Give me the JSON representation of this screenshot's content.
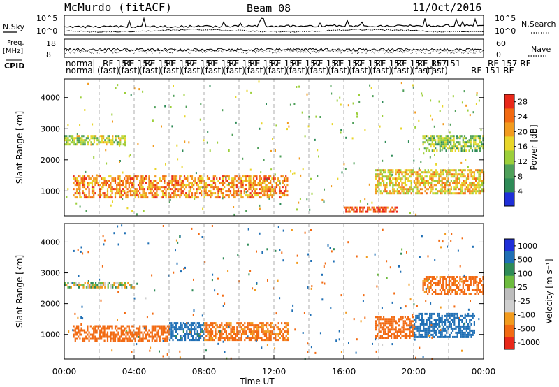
{
  "header": {
    "station": "McMurdo (fitACF)",
    "beam": "Beam 08",
    "date": "11/Oct/2016"
  },
  "strip_labels": {
    "nsky": "N.Sky",
    "nsky_ticks": [
      "10^5",
      "10^0"
    ],
    "nsearch": "N.Search",
    "nsearch_ticks": [
      "10^5",
      "10^0"
    ],
    "freq_line1": "Freq.",
    "freq_line2": "[MHz]",
    "freq_ticks": [
      "18",
      "8"
    ],
    "nave": "Nave",
    "nave_ticks": [
      "60",
      "0"
    ],
    "cpid": "CPID",
    "cpid_row1": "normal",
    "cpid_row2": "normal",
    "cpid_fragments": [
      "(fast)",
      "RF",
      "RF-157",
      "RF-151"
    ]
  },
  "colors": {
    "power": [
      "#1f2fd8",
      "#2e8b57",
      "#4fa05a",
      "#9ccf3a",
      "#e8d62a",
      "#f29b1e",
      "#f26a12",
      "#e8281a"
    ],
    "velocity": [
      "#e8281a",
      "#f26a12",
      "#f29b1e",
      "#cfcfcf",
      "#bdbdbd",
      "#6dbb3f",
      "#2e8b57",
      "#1f6fb5",
      "#1f2fd8"
    ]
  },
  "chart_data": [
    {
      "type": "heatmap",
      "name": "power",
      "xlabel": "",
      "ylabel": "Slant Range [km]",
      "x_ticks": [
        "00:00",
        "04:00",
        "08:00",
        "12:00",
        "16:00",
        "20:00",
        "00:00"
      ],
      "y_ticks": [
        1000,
        2000,
        3000,
        4000
      ],
      "ylim": [
        200,
        4600
      ],
      "colorbar": {
        "label": "Power [dB]",
        "ticks": [
          4,
          8,
          12,
          16,
          20,
          24,
          28
        ],
        "range": [
          0,
          30
        ]
      },
      "echo_bands": [
        {
          "x": [
            0.5,
            12.8
          ],
          "range": [
            800,
            1500
          ],
          "power": 22
        },
        {
          "x": [
            0.0,
            3.5
          ],
          "range": [
            2500,
            2800
          ],
          "power": 14
        },
        {
          "x": [
            17.8,
            24.0
          ],
          "range": [
            900,
            1700
          ],
          "power": 18
        },
        {
          "x": [
            20.5,
            24.0
          ],
          "range": [
            2300,
            2800
          ],
          "power": 12
        },
        {
          "x": [
            16.0,
            19.0
          ],
          "range": [
            300,
            500
          ],
          "power": 26
        }
      ]
    },
    {
      "type": "heatmap",
      "name": "velocity",
      "xlabel": "Time UT",
      "ylabel": "Slant Range [km]",
      "x_ticks": [
        "00:00",
        "04:00",
        "08:00",
        "12:00",
        "16:00",
        "20:00",
        "00:00"
      ],
      "y_ticks": [
        1000,
        2000,
        3000,
        4000
      ],
      "ylim": [
        200,
        4600
      ],
      "colorbar": {
        "label": "Velocity [m s⁻¹]",
        "ticks": [
          "1000",
          "500",
          "100",
          "25",
          "-25",
          "-100",
          "-500",
          "-1000"
        ],
        "range": [
          -1000,
          1000
        ]
      },
      "echo_bands": [
        {
          "x": [
            0.5,
            6.0
          ],
          "range": [
            800,
            1300
          ],
          "velocity": -200
        },
        {
          "x": [
            6.0,
            8.0
          ],
          "range": [
            800,
            1400
          ],
          "velocity": 150
        },
        {
          "x": [
            8.0,
            12.8
          ],
          "range": [
            800,
            1400
          ],
          "velocity": -120
        },
        {
          "x": [
            0.0,
            4.0
          ],
          "range": [
            2500,
            2700
          ],
          "velocity": 0
        },
        {
          "x": [
            17.8,
            20.0
          ],
          "range": [
            900,
            1600
          ],
          "velocity": -200
        },
        {
          "x": [
            20.0,
            23.5
          ],
          "range": [
            900,
            1700
          ],
          "velocity": 200
        },
        {
          "x": [
            20.5,
            24.0
          ],
          "range": [
            2300,
            2900
          ],
          "velocity": -150
        }
      ]
    }
  ]
}
